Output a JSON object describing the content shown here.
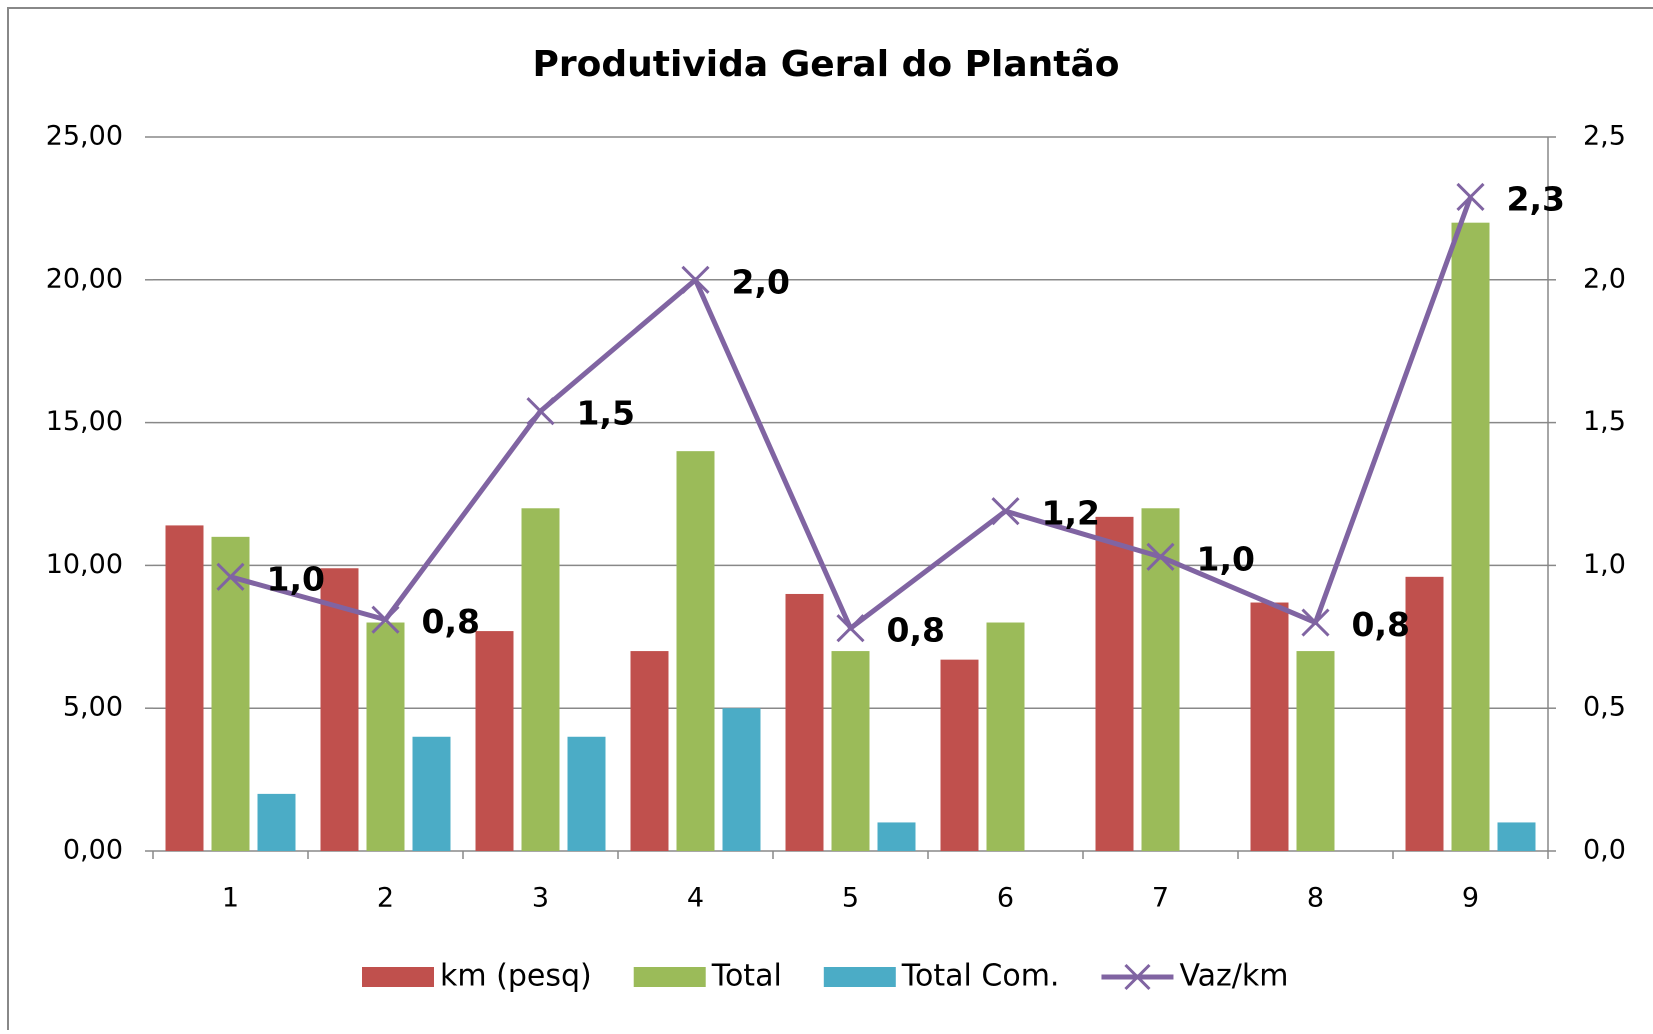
{
  "chart_data": {
    "type": "bar-line",
    "title": "Produtivida Geral do Plantão",
    "categories": [
      "1",
      "2",
      "3",
      "4",
      "5",
      "6",
      "7",
      "8",
      "9"
    ],
    "series": [
      {
        "name": "km (pesq)",
        "color": "#c0504d",
        "values": [
          11.4,
          9.9,
          7.7,
          7.0,
          9.0,
          6.7,
          11.7,
          8.7,
          9.6
        ]
      },
      {
        "name": "Total",
        "color": "#9bbb59",
        "values": [
          11,
          8,
          12,
          14,
          7,
          8,
          12,
          7,
          22
        ]
      },
      {
        "name": "Total Com.",
        "color": "#4bacc6",
        "values": [
          2,
          4,
          4,
          5,
          1,
          0,
          0,
          0,
          1
        ]
      },
      {
        "name": "Vaz/km",
        "color": "#8064a2",
        "axis": "y2",
        "type": "line",
        "values": [
          0.96,
          0.81,
          1.54,
          2.0,
          0.78,
          1.19,
          1.03,
          0.8,
          2.29
        ],
        "value_labels": [
          "1,0",
          "0,8",
          "1,5",
          "2,0",
          "0,8",
          "1,2",
          "1,0",
          "0,8",
          "2,3"
        ],
        "label_color": "#ff0000"
      }
    ],
    "ylim": [
      0,
      25
    ],
    "yticks": [
      {
        "value": 0,
        "label": "0,00"
      },
      {
        "value": 5,
        "label": "5,00"
      },
      {
        "value": 10,
        "label": "10,00"
      },
      {
        "value": 15,
        "label": "15,00"
      },
      {
        "value": 20,
        "label": "20,00"
      },
      {
        "value": 25,
        "label": "25,00"
      }
    ],
    "y2lim": [
      0,
      2.5
    ],
    "y2ticks": [
      {
        "value": 0,
        "label": "0,0"
      },
      {
        "value": 0.5,
        "label": "0,5"
      },
      {
        "value": 1,
        "label": "1,0"
      },
      {
        "value": 1.5,
        "label": "1,5"
      },
      {
        "value": 2,
        "label": "2,0"
      },
      {
        "value": 2.5,
        "label": "2,5"
      }
    ],
    "grid": true,
    "legend": "bottom"
  }
}
